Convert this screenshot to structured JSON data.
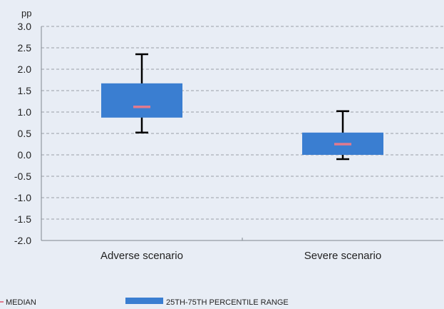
{
  "chart_data": {
    "type": "boxplot",
    "ylabel": "pp",
    "ylim": [
      -2.0,
      3.0
    ],
    "yticks": [
      "3.0",
      "2.5",
      "2.0",
      "1.5",
      "1.0",
      "0.5",
      "0.0",
      "-0.5",
      "-1.0",
      "-1.5",
      "-2.0"
    ],
    "ytick_values": [
      3.0,
      2.5,
      2.0,
      1.5,
      1.0,
      0.5,
      0.0,
      -0.5,
      -1.0,
      -1.5,
      -2.0
    ],
    "grid": true,
    "categories": [
      "Adverse scenario",
      "Severe scenario"
    ],
    "boxes": [
      {
        "category": "Adverse scenario",
        "whisker_low": 0.52,
        "q1": 0.87,
        "median": 1.12,
        "q3": 1.67,
        "whisker_high": 2.35
      },
      {
        "category": "Severe scenario",
        "whisker_low": -0.1,
        "q1": 0.0,
        "median": 0.25,
        "q3": 0.52,
        "whisker_high": 1.02
      }
    ],
    "legend": {
      "placement": "bottom",
      "median_label": "MEDIAN",
      "range_label": "25TH-75TH PERCENTILE RANGE"
    },
    "colors": {
      "background": "#e8edf5",
      "box": "#3a7ed1",
      "median": "#e07a8e",
      "whisker": "#000000",
      "grid": "#9aa0a8",
      "axis": "#7f868f"
    }
  }
}
